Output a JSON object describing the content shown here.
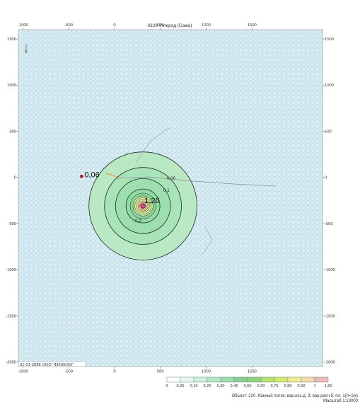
{
  "chart_data": {
    "type": "contour",
    "title": "0328 Углерод (Сажа)",
    "x_ticks": [
      -1000,
      -500,
      0,
      500,
      1000,
      1500
    ],
    "y_ticks": [
      1500,
      1000,
      500,
      0,
      -500,
      -1000,
      -1500,
      -2000
    ],
    "xlim": [
      -1050,
      2270
    ],
    "ylim": [
      -2050,
      1600
    ],
    "grid": true,
    "background_color": "#d9edf3",
    "source_point": {
      "x": 310,
      "y": -310,
      "value_label": "1,26"
    },
    "receptor_point": {
      "x": -360,
      "y": 10,
      "value_label": "0,06"
    },
    "contours": [
      {
        "level": 0.05,
        "radius": 590,
        "label": ""
      },
      {
        "level": 0.06,
        "radius": 420,
        "label": "0,06"
      },
      {
        "level": 0.1,
        "radius": 300,
        "label": "0,1"
      },
      {
        "level": 0.2,
        "radius": 185,
        "label": "0,2"
      },
      {
        "level": 0.3,
        "radius": 140,
        "label": ""
      },
      {
        "level": 0.4,
        "radius": 110,
        "label": ""
      },
      {
        "level": 0.5,
        "radius": 90,
        "label": ""
      },
      {
        "level": 0.6,
        "radius": 70,
        "label": ""
      },
      {
        "level": 0.7,
        "radius": 55,
        "label": ""
      },
      {
        "level": 0.8,
        "radius": 40,
        "label": ""
      },
      {
        "level": 0.9,
        "radius": 28,
        "label": ""
      },
      {
        "level": 1,
        "radius": 18,
        "label": ""
      }
    ],
    "legend": {
      "labels": [
        "0",
        "0,05",
        "0,10",
        "0,20",
        "0,30",
        "0,40",
        "0,50",
        "0,60",
        "0,70",
        "0,80",
        "0,90",
        "1",
        "1,50"
      ],
      "colors": [
        "#ffffff",
        "#eaf7ee",
        "#cdeed9",
        "#b5e6c4",
        "#9bdcaa",
        "#84d190",
        "#8fd67a",
        "#b7e26a",
        "#d9ea6a",
        "#f2ec8a",
        "#f7d7a8",
        "#f2b8b8"
      ]
    },
    "stamp": "01-01-2898 ООО \"ФИЭКОМ\"",
    "north_label": "N"
  },
  "credit": {
    "line1": "Объект: 220. Южный поток; вар.исх.д. 3; вар.расч.5; пл. 1(h=2м)",
    "line2": "Масштаб 1:19000"
  }
}
